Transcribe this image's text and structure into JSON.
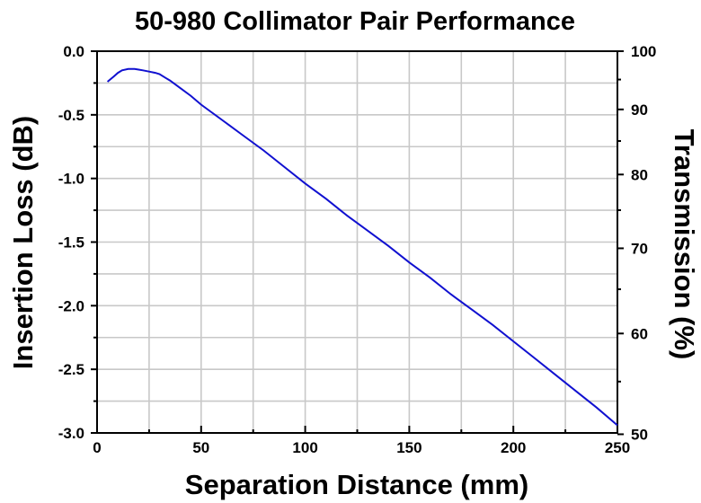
{
  "chart_data": {
    "type": "line",
    "title": "50-980 Collimator Pair Performance",
    "xlabel": "Separation Distance (mm)",
    "ylabel": "Insertion Loss (dB)",
    "ylabel_right": "Transmission (%)",
    "xlim": [
      0,
      250
    ],
    "ylim": [
      -3.0,
      0.0
    ],
    "x_ticks": [
      0,
      50,
      100,
      150,
      200,
      250
    ],
    "x_tick_labels": [
      "0",
      "50",
      "100",
      "150",
      "200",
      "250"
    ],
    "y_ticks": [
      0.0,
      -0.5,
      -1.0,
      -1.5,
      -2.0,
      -2.5,
      -3.0
    ],
    "y_tick_labels": [
      "0.0",
      "-0.5",
      "-1.0",
      "-1.5",
      "-2.0",
      "-2.5",
      "-3.0"
    ],
    "y_right_ticks": [
      100,
      90,
      80,
      70,
      60,
      50
    ],
    "y_right_tick_labels": [
      "100",
      "90",
      "80",
      "70",
      "60",
      "50"
    ],
    "y_right_scale": "transmission (%) = 100 * 10^(loss/10)",
    "grid": true,
    "line_color": "#1010d0",
    "series": [
      {
        "x": [
          5,
          8,
          10,
          12,
          15,
          18,
          20,
          22,
          25,
          28,
          30,
          33,
          35,
          40,
          45,
          50,
          55,
          60,
          70,
          80,
          90,
          100,
          110,
          120,
          130,
          140,
          150,
          160,
          170,
          180,
          190,
          200,
          210,
          220,
          230,
          240,
          250
        ],
        "values": [
          -0.24,
          -0.2,
          -0.17,
          -0.15,
          -0.14,
          -0.14,
          -0.145,
          -0.15,
          -0.16,
          -0.17,
          -0.18,
          -0.21,
          -0.23,
          -0.29,
          -0.35,
          -0.42,
          -0.48,
          -0.54,
          -0.66,
          -0.78,
          -0.91,
          -1.04,
          -1.16,
          -1.29,
          -1.41,
          -1.53,
          -1.66,
          -1.78,
          -1.91,
          -2.03,
          -2.15,
          -2.28,
          -2.41,
          -2.54,
          -2.67,
          -2.8,
          -2.94
        ]
      }
    ]
  }
}
